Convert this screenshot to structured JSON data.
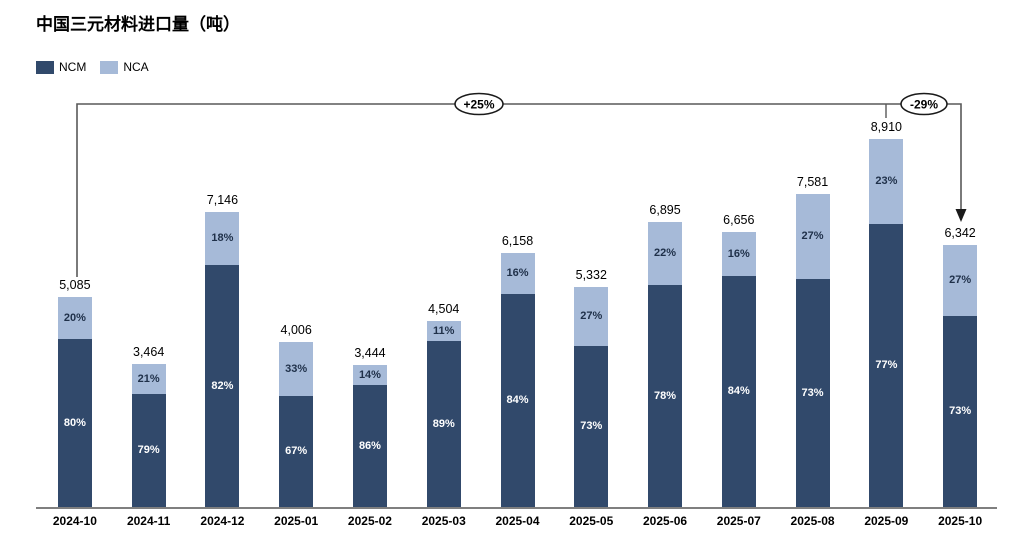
{
  "title": "中国三元材料进口量（吨）",
  "legend": [
    {
      "key": "ncm",
      "label": "NCM"
    },
    {
      "key": "nca",
      "label": "NCA"
    }
  ],
  "annotations": {
    "yoy_label": "+25%",
    "mom_label": "-29%"
  },
  "chart_data": {
    "type": "bar",
    "stacked": true,
    "title": "中国三元材料进口量（吨）",
    "unit": "吨",
    "grid": false,
    "legend_position": "top-left",
    "categories": [
      "2024-10",
      "2024-11",
      "2024-12",
      "2025-01",
      "2025-02",
      "2025-03",
      "2025-04",
      "2025-05",
      "2025-06",
      "2025-07",
      "2025-08",
      "2025-09",
      "2025-10"
    ],
    "totals": [
      5085,
      3464,
      7146,
      4006,
      3444,
      4504,
      6158,
      5332,
      6895,
      6656,
      7581,
      8910,
      6342
    ],
    "total_labels": [
      "5,085",
      "3,464",
      "7,146",
      "4,006",
      "3,444",
      "4,504",
      "6,158",
      "5,332",
      "6,895",
      "6,656",
      "7,581",
      "8,910",
      "6,342"
    ],
    "series": [
      {
        "name": "NCM",
        "values_pct": [
          80,
          79,
          82,
          67,
          86,
          89,
          84,
          73,
          78,
          84,
          73,
          77,
          73
        ]
      },
      {
        "name": "NCA",
        "values_pct": [
          20,
          21,
          18,
          33,
          14,
          11,
          16,
          27,
          22,
          16,
          27,
          23,
          27
        ]
      }
    ],
    "percent_suffix": "%",
    "ylim": [
      0,
      9800
    ],
    "colors": {
      "ncm": "#31496B",
      "nca": "#A6BAD8",
      "ncm_label": "#FFFFFF",
      "nca_label": "#1F3049",
      "axis": "#7F7F7F",
      "connector": "#595959",
      "arrow": "#1A1A1A"
    }
  }
}
